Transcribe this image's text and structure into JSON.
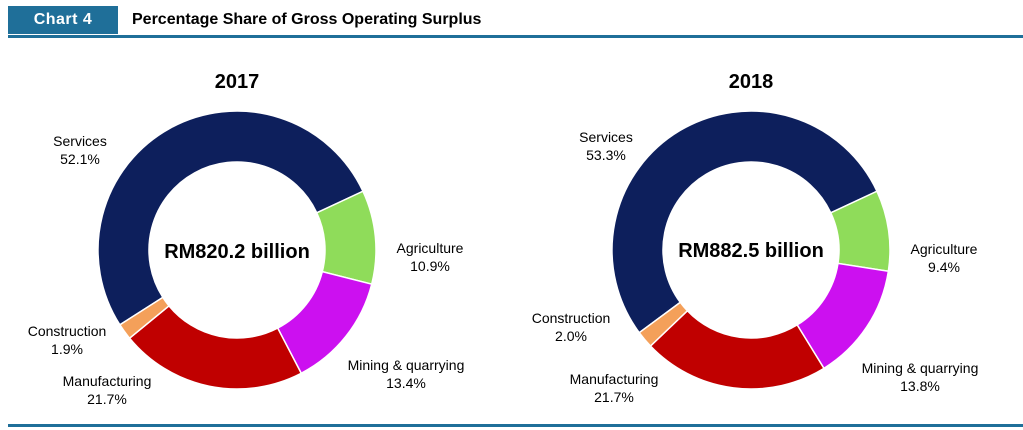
{
  "header": {
    "badge": "Chart  4",
    "title": "Percentage Share of Gross Operating Surplus"
  },
  "colors": {
    "accent": "#1f6f99",
    "Services": "#0d1f5c",
    "Agriculture": "#8fdc5a",
    "Mining & quarrying": "#cc10f0",
    "Manufacturing": "#c00000",
    "Construction": "#f4a05a"
  },
  "chart_data": [
    {
      "type": "pie",
      "title": "2017",
      "center_label": "RM820.2 billion",
      "labels": [
        "Services",
        "Agriculture",
        "Mining & quarrying",
        "Manufacturing",
        "Construction"
      ],
      "values": [
        52.1,
        10.9,
        13.4,
        21.7,
        1.9
      ],
      "value_labels": [
        "52.1%",
        "10.9%",
        "13.4%",
        "21.7%",
        "1.9%"
      ]
    },
    {
      "type": "pie",
      "title": "2018",
      "center_label": "RM882.5 billion",
      "labels": [
        "Services",
        "Agriculture",
        "Mining & quarrying",
        "Manufacturing",
        "Construction"
      ],
      "values": [
        53.3,
        9.4,
        13.8,
        21.7,
        2.0
      ],
      "value_labels": [
        "53.3%",
        "9.4%",
        "13.8%",
        "21.7%",
        "2.0%"
      ]
    }
  ]
}
